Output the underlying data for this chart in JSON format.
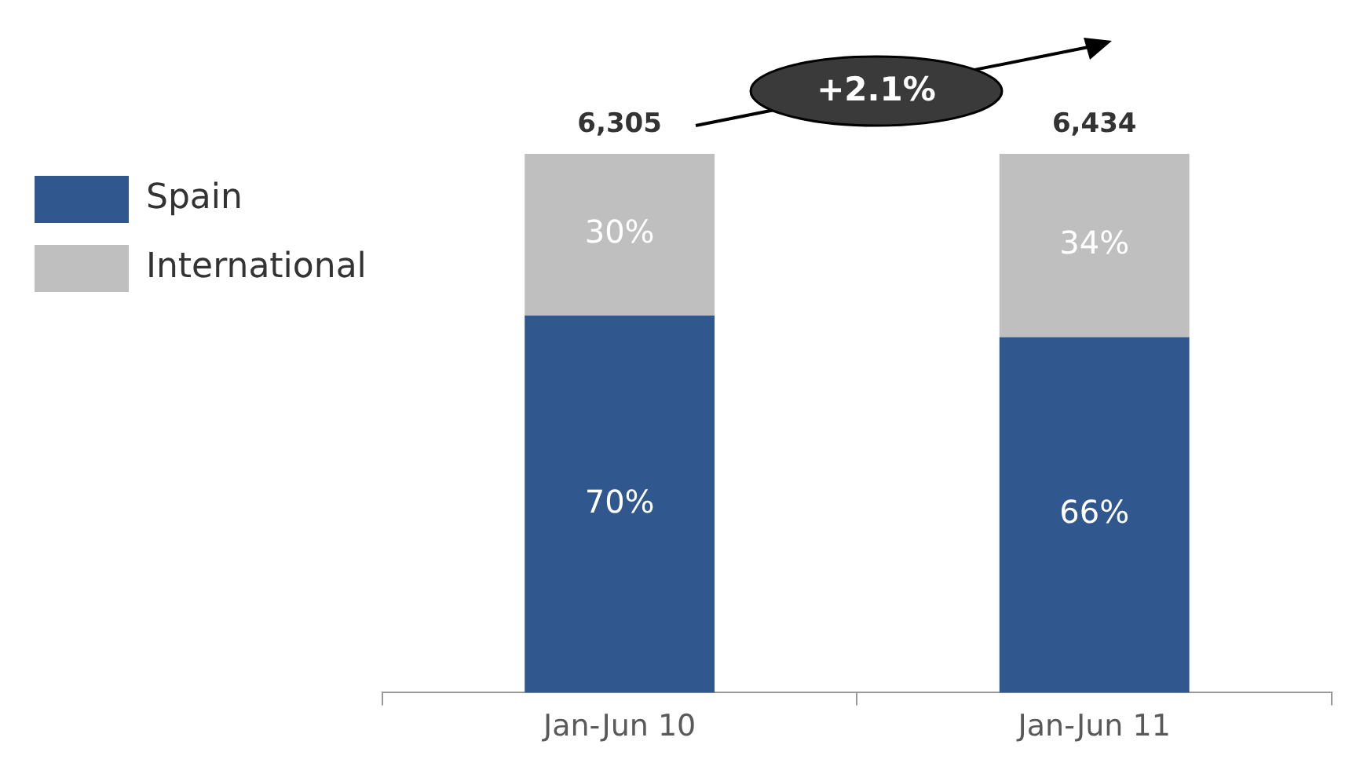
{
  "chart_data": {
    "type": "bar",
    "stacked": true,
    "categories": [
      "Jan-Jun 10",
      "Jan-Jun 11"
    ],
    "series": [
      {
        "name": "Spain",
        "color": "#30578e",
        "values": [
          70,
          66
        ],
        "value_labels": [
          "70%",
          "66%"
        ]
      },
      {
        "name": "International",
        "color": "#bfbfbf",
        "values": [
          30,
          34
        ],
        "value_labels": [
          "30%",
          "34%"
        ]
      }
    ],
    "annotations": [
      "6,305",
      "6,434",
      "+2.1%"
    ],
    "legend": "top left",
    "grid": false,
    "tick_labels": "x"
  }
}
